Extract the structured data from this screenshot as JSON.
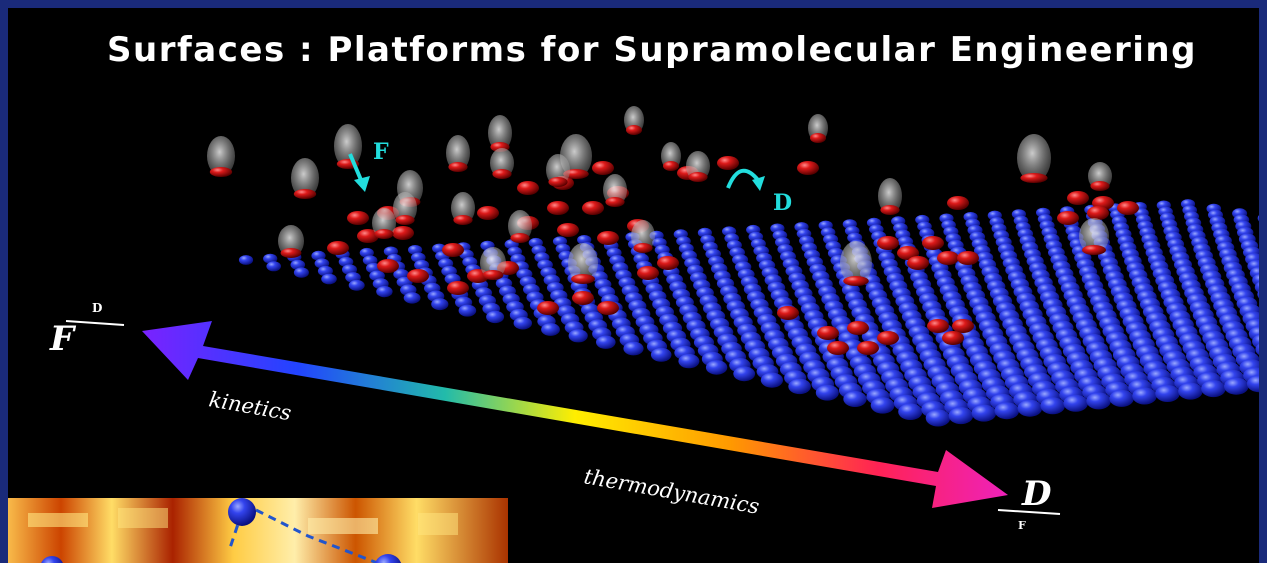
{
  "slide": {
    "title": "Surfaces : Platforms for Supramolecular Engineering"
  },
  "diagram": {
    "deposition_label": "F",
    "diffusion_label": "D",
    "left_ratio": {
      "numerator": "D",
      "denominator": "F"
    },
    "right_ratio": {
      "numerator": "D",
      "denominator": "F"
    },
    "kinetics_label": "kinetics",
    "thermodynamics_label": "thermodynamics",
    "colors": {
      "frame": "#1a2a7a",
      "surface_atoms": "#2233dd",
      "adsorbates": "#cc1111",
      "arrow_labels": "#22dddd"
    }
  }
}
